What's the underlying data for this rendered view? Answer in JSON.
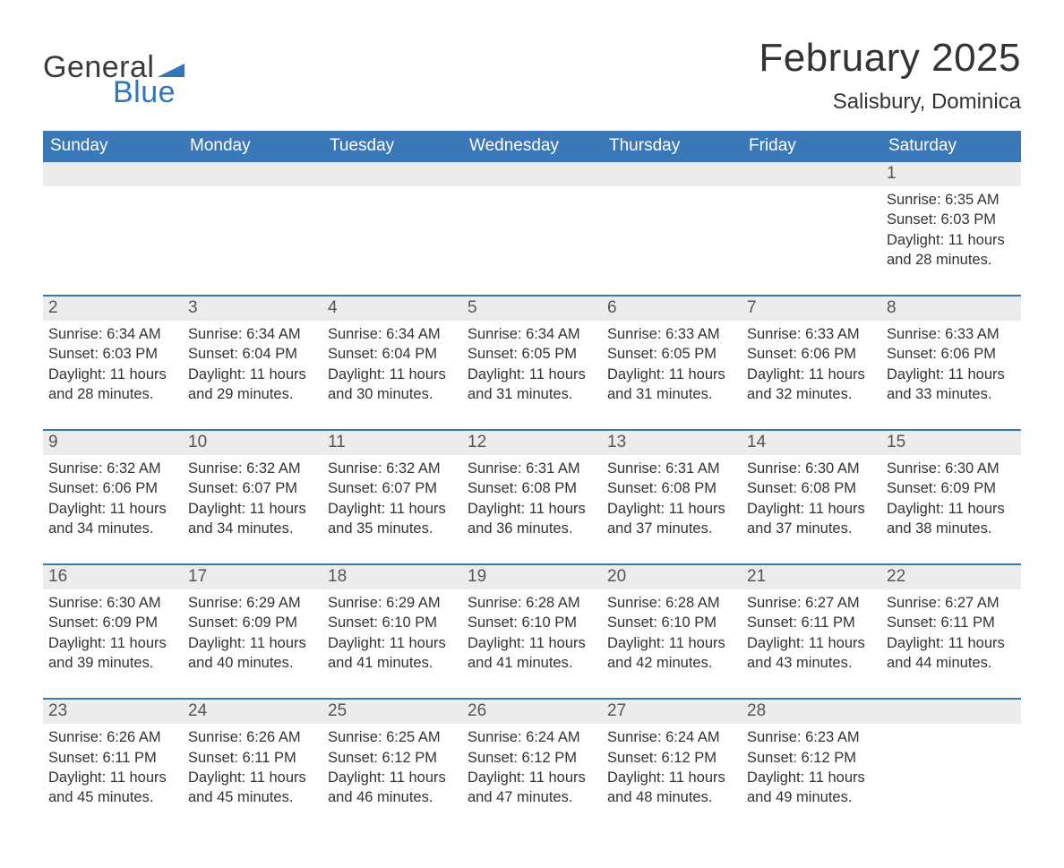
{
  "brand": {
    "word1": "General",
    "word2": "Blue",
    "text_color": "#3a3a3a",
    "accent_color": "#2f76bb"
  },
  "title": {
    "month_year": "February 2025",
    "location": "Salisbury, Dominica",
    "title_fontsize": 44,
    "location_fontsize": 24
  },
  "calendar": {
    "type": "table",
    "header_bg": "#3b78b8",
    "header_text_color": "#ffffff",
    "daynum_bg": "#ececec",
    "row_divider_color": "#3b78b8",
    "background_color": "#ffffff",
    "body_text_color": "#333333",
    "body_fontsize": 16.5,
    "header_fontsize": 19,
    "days_of_week": [
      "Sunday",
      "Monday",
      "Tuesday",
      "Wednesday",
      "Thursday",
      "Friday",
      "Saturday"
    ],
    "weeks": [
      [
        {
          "n": "",
          "sunrise": "",
          "sunset": "",
          "daylight": ""
        },
        {
          "n": "",
          "sunrise": "",
          "sunset": "",
          "daylight": ""
        },
        {
          "n": "",
          "sunrise": "",
          "sunset": "",
          "daylight": ""
        },
        {
          "n": "",
          "sunrise": "",
          "sunset": "",
          "daylight": ""
        },
        {
          "n": "",
          "sunrise": "",
          "sunset": "",
          "daylight": ""
        },
        {
          "n": "",
          "sunrise": "",
          "sunset": "",
          "daylight": ""
        },
        {
          "n": "1",
          "sunrise": "Sunrise: 6:35 AM",
          "sunset": "Sunset: 6:03 PM",
          "daylight": "Daylight: 11 hours and 28 minutes."
        }
      ],
      [
        {
          "n": "2",
          "sunrise": "Sunrise: 6:34 AM",
          "sunset": "Sunset: 6:03 PM",
          "daylight": "Daylight: 11 hours and 28 minutes."
        },
        {
          "n": "3",
          "sunrise": "Sunrise: 6:34 AM",
          "sunset": "Sunset: 6:04 PM",
          "daylight": "Daylight: 11 hours and 29 minutes."
        },
        {
          "n": "4",
          "sunrise": "Sunrise: 6:34 AM",
          "sunset": "Sunset: 6:04 PM",
          "daylight": "Daylight: 11 hours and 30 minutes."
        },
        {
          "n": "5",
          "sunrise": "Sunrise: 6:34 AM",
          "sunset": "Sunset: 6:05 PM",
          "daylight": "Daylight: 11 hours and 31 minutes."
        },
        {
          "n": "6",
          "sunrise": "Sunrise: 6:33 AM",
          "sunset": "Sunset: 6:05 PM",
          "daylight": "Daylight: 11 hours and 31 minutes."
        },
        {
          "n": "7",
          "sunrise": "Sunrise: 6:33 AM",
          "sunset": "Sunset: 6:06 PM",
          "daylight": "Daylight: 11 hours and 32 minutes."
        },
        {
          "n": "8",
          "sunrise": "Sunrise: 6:33 AM",
          "sunset": "Sunset: 6:06 PM",
          "daylight": "Daylight: 11 hours and 33 minutes."
        }
      ],
      [
        {
          "n": "9",
          "sunrise": "Sunrise: 6:32 AM",
          "sunset": "Sunset: 6:06 PM",
          "daylight": "Daylight: 11 hours and 34 minutes."
        },
        {
          "n": "10",
          "sunrise": "Sunrise: 6:32 AM",
          "sunset": "Sunset: 6:07 PM",
          "daylight": "Daylight: 11 hours and 34 minutes."
        },
        {
          "n": "11",
          "sunrise": "Sunrise: 6:32 AM",
          "sunset": "Sunset: 6:07 PM",
          "daylight": "Daylight: 11 hours and 35 minutes."
        },
        {
          "n": "12",
          "sunrise": "Sunrise: 6:31 AM",
          "sunset": "Sunset: 6:08 PM",
          "daylight": "Daylight: 11 hours and 36 minutes."
        },
        {
          "n": "13",
          "sunrise": "Sunrise: 6:31 AM",
          "sunset": "Sunset: 6:08 PM",
          "daylight": "Daylight: 11 hours and 37 minutes."
        },
        {
          "n": "14",
          "sunrise": "Sunrise: 6:30 AM",
          "sunset": "Sunset: 6:08 PM",
          "daylight": "Daylight: 11 hours and 37 minutes."
        },
        {
          "n": "15",
          "sunrise": "Sunrise: 6:30 AM",
          "sunset": "Sunset: 6:09 PM",
          "daylight": "Daylight: 11 hours and 38 minutes."
        }
      ],
      [
        {
          "n": "16",
          "sunrise": "Sunrise: 6:30 AM",
          "sunset": "Sunset: 6:09 PM",
          "daylight": "Daylight: 11 hours and 39 minutes."
        },
        {
          "n": "17",
          "sunrise": "Sunrise: 6:29 AM",
          "sunset": "Sunset: 6:09 PM",
          "daylight": "Daylight: 11 hours and 40 minutes."
        },
        {
          "n": "18",
          "sunrise": "Sunrise: 6:29 AM",
          "sunset": "Sunset: 6:10 PM",
          "daylight": "Daylight: 11 hours and 41 minutes."
        },
        {
          "n": "19",
          "sunrise": "Sunrise: 6:28 AM",
          "sunset": "Sunset: 6:10 PM",
          "daylight": "Daylight: 11 hours and 41 minutes."
        },
        {
          "n": "20",
          "sunrise": "Sunrise: 6:28 AM",
          "sunset": "Sunset: 6:10 PM",
          "daylight": "Daylight: 11 hours and 42 minutes."
        },
        {
          "n": "21",
          "sunrise": "Sunrise: 6:27 AM",
          "sunset": "Sunset: 6:11 PM",
          "daylight": "Daylight: 11 hours and 43 minutes."
        },
        {
          "n": "22",
          "sunrise": "Sunrise: 6:27 AM",
          "sunset": "Sunset: 6:11 PM",
          "daylight": "Daylight: 11 hours and 44 minutes."
        }
      ],
      [
        {
          "n": "23",
          "sunrise": "Sunrise: 6:26 AM",
          "sunset": "Sunset: 6:11 PM",
          "daylight": "Daylight: 11 hours and 45 minutes."
        },
        {
          "n": "24",
          "sunrise": "Sunrise: 6:26 AM",
          "sunset": "Sunset: 6:11 PM",
          "daylight": "Daylight: 11 hours and 45 minutes."
        },
        {
          "n": "25",
          "sunrise": "Sunrise: 6:25 AM",
          "sunset": "Sunset: 6:12 PM",
          "daylight": "Daylight: 11 hours and 46 minutes."
        },
        {
          "n": "26",
          "sunrise": "Sunrise: 6:24 AM",
          "sunset": "Sunset: 6:12 PM",
          "daylight": "Daylight: 11 hours and 47 minutes."
        },
        {
          "n": "27",
          "sunrise": "Sunrise: 6:24 AM",
          "sunset": "Sunset: 6:12 PM",
          "daylight": "Daylight: 11 hours and 48 minutes."
        },
        {
          "n": "28",
          "sunrise": "Sunrise: 6:23 AM",
          "sunset": "Sunset: 6:12 PM",
          "daylight": "Daylight: 11 hours and 49 minutes."
        },
        {
          "n": "",
          "sunrise": "",
          "sunset": "",
          "daylight": ""
        }
      ]
    ]
  }
}
